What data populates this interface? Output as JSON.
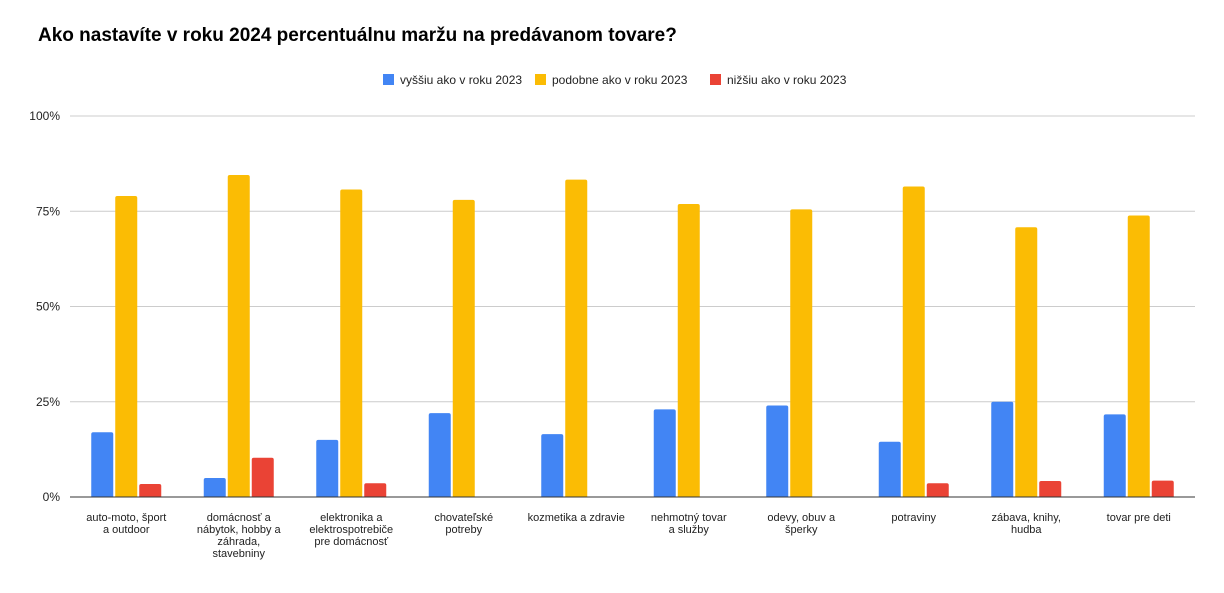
{
  "chart_data": {
    "type": "bar",
    "title": "Ako nastavíte v roku 2024 percentuálnu maržu na predávanom tovare?",
    "xlabel": "",
    "ylabel": "",
    "ylim": [
      0,
      100
    ],
    "yticks": [
      "0%",
      "25%",
      "50%",
      "75%",
      "100%"
    ],
    "ytick_values": [
      0,
      25,
      50,
      75,
      100
    ],
    "grid": true,
    "legend_position": "top-center",
    "categories": [
      [
        "auto-moto, šport",
        "a outdoor"
      ],
      [
        "domácnosť a",
        "nábytok, hobby a",
        "záhrada,",
        "stavebniny"
      ],
      [
        "elektronika a",
        "elektrospotrebiče",
        "pre domácnosť"
      ],
      [
        "chovateľské",
        "potreby"
      ],
      [
        "kozmetika a zdravie"
      ],
      [
        "nehmotný tovar",
        "a služby"
      ],
      [
        "odevy, obuv a",
        "šperky"
      ],
      [
        "potraviny"
      ],
      [
        "zábava, knihy,",
        "hudba"
      ],
      [
        "tovar pre deti"
      ]
    ],
    "series": [
      {
        "name": "vyššiu ako v roku 2023",
        "color": "#4285f4",
        "values": [
          17,
          5,
          15,
          22,
          16.5,
          23,
          24,
          14.5,
          25,
          21.7
        ]
      },
      {
        "name": "podobne ako v roku 2023",
        "color": "#fbbc04",
        "values": [
          79,
          84.5,
          80.7,
          78,
          83.3,
          76.9,
          75.5,
          81.5,
          70.8,
          73.9
        ]
      },
      {
        "name": "nižšiu ako v roku 2023",
        "color": "#ea4335",
        "values": [
          3.4,
          10.3,
          3.6,
          0,
          0,
          0,
          0,
          3.6,
          4.2,
          4.3
        ]
      }
    ]
  }
}
